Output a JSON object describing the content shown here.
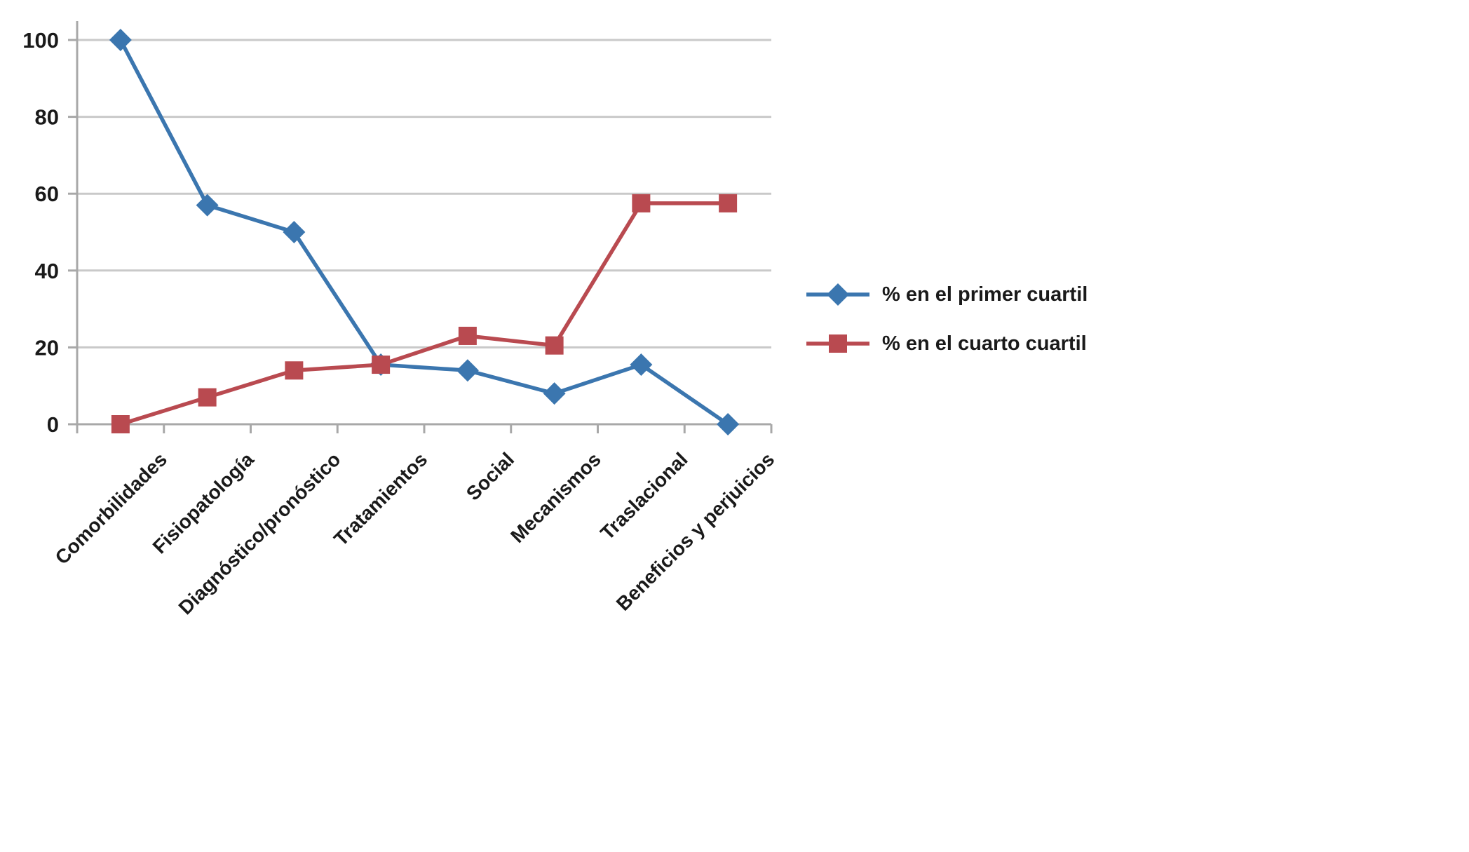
{
  "chart_data": {
    "type": "line",
    "title": "",
    "xlabel": "",
    "ylabel": "",
    "categories": [
      "Comorbilidades",
      "Fisiopatología",
      "Diagnóstico/pronóstico",
      "Tratamientos",
      "Social",
      "Mecanismos",
      "Traslacional",
      "Beneficios y perjuicios"
    ],
    "series": [
      {
        "name": "% en el primer cuartil",
        "color": "#3B76AF",
        "marker": "diamond",
        "values": [
          100,
          57,
          50,
          15.5,
          14,
          8,
          15.5,
          0
        ]
      },
      {
        "name": "% en el cuarto cuartil",
        "color": "#B94A50",
        "marker": "square",
        "values": [
          0,
          7,
          14,
          15.5,
          23,
          20.5,
          57.5,
          57.5
        ]
      }
    ],
    "ylim": [
      0,
      100
    ],
    "yticks": [
      0,
      20,
      40,
      60,
      80,
      100
    ],
    "grid": true,
    "grid_color": "#C9C9C9",
    "axis_color": "#A8A8A8",
    "legend_position": "right"
  }
}
